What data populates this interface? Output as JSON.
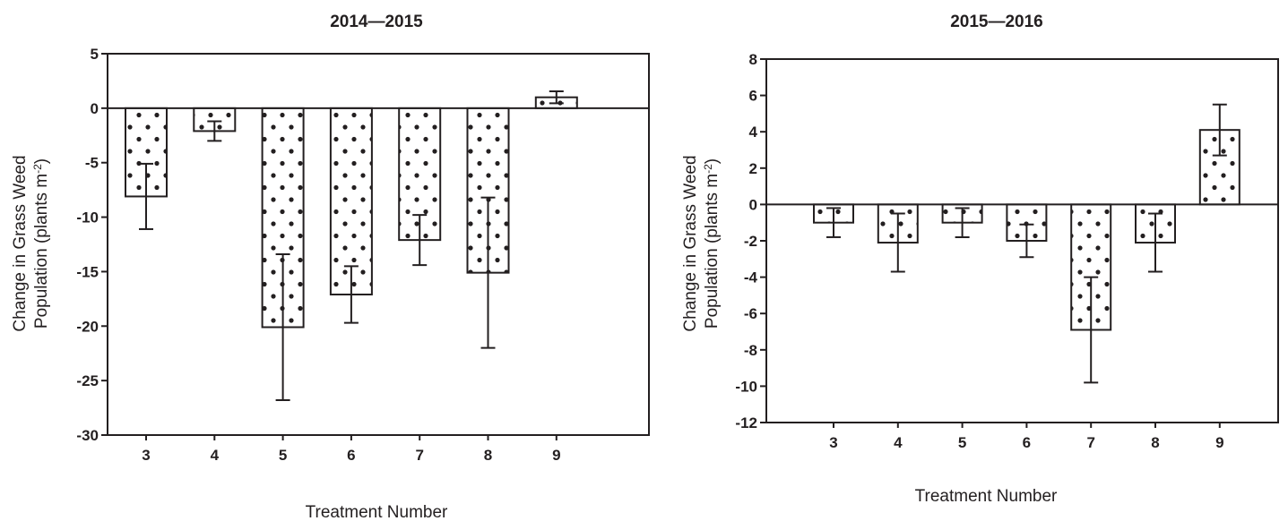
{
  "chart_data": [
    {
      "type": "bar",
      "title": "2014—2015",
      "xlabel": "Treatment Number",
      "ylabel_line1": "Change in Grass Weed",
      "ylabel_line2": "Population (plants m",
      "ylabel_sup": "-2",
      "ylabel_end": ")",
      "categories": [
        "3",
        "4",
        "5",
        "6",
        "7",
        "8",
        "9"
      ],
      "values": [
        -8.1,
        -2.1,
        -20.1,
        -17.1,
        -12.1,
        -15.1,
        1.0
      ],
      "error": [
        3.0,
        0.9,
        6.7,
        2.6,
        2.3,
        6.9,
        0.55
      ],
      "ylim": [
        -30,
        5
      ],
      "yticks": [
        "-30",
        "-25",
        "-20",
        "-15",
        "-10",
        "-5",
        "0",
        "5"
      ],
      "ytick_values": [
        -30,
        -25,
        -20,
        -15,
        -10,
        -5,
        0,
        5
      ],
      "grid": false,
      "bar_fill": "stippled dots",
      "bar_color": "#ffffff",
      "stroke_color": "#231f20"
    },
    {
      "type": "bar",
      "title": "2015—2016",
      "xlabel": "Treatment Number",
      "ylabel_line1": "Change in Grass Weed",
      "ylabel_line2": "Population (plants m",
      "ylabel_sup": "-2",
      "ylabel_end": ")",
      "categories": [
        "3",
        "4",
        "5",
        "6",
        "7",
        "8",
        "9"
      ],
      "values": [
        -1.0,
        -2.1,
        -1.0,
        -2.0,
        -6.9,
        -2.1,
        4.1
      ],
      "error": [
        0.8,
        1.6,
        0.8,
        0.9,
        2.9,
        1.6,
        1.4
      ],
      "ylim": [
        -12,
        8
      ],
      "yticks": [
        "-12",
        "-10",
        "-8",
        "-6",
        "-4",
        "-2",
        "0",
        "2",
        "4",
        "6",
        "8"
      ],
      "ytick_values": [
        -12,
        -10,
        -8,
        -6,
        -4,
        -2,
        0,
        2,
        4,
        6,
        8
      ],
      "grid": false,
      "bar_fill": "stippled dots",
      "bar_color": "#ffffff",
      "stroke_color": "#231f20"
    }
  ]
}
